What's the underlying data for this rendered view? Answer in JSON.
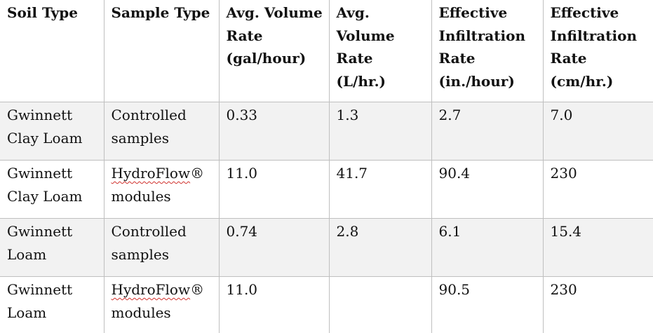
{
  "table": {
    "headers": [
      "Soil Type",
      "Sample Type",
      "Avg. Volume Rate (gal/hour)",
      "Avg. Volume Rate (L/hr.)",
      "Effective Infiltration Rate (in./hour)",
      "Effective Infiltration Rate (cm/hr.)"
    ],
    "rows": [
      {
        "soil_type": "Gwinnett Clay Loam",
        "sample_type_brand": "",
        "sample_type": "Controlled samples",
        "avg_gal_hour": "0.33",
        "avg_l_hr": "1.3",
        "inf_in_hour": "2.7",
        "inf_cm_hr": "7.0"
      },
      {
        "soil_type": "Gwinnett Clay Loam",
        "sample_type_brand": "HydroFlow",
        "sample_type": "® modules",
        "avg_gal_hour": "11.0",
        "avg_l_hr": "41.7",
        "inf_in_hour": "90.4",
        "inf_cm_hr": "230"
      },
      {
        "soil_type": "Gwinnett Loam",
        "sample_type_brand": "",
        "sample_type": "Controlled samples",
        "avg_gal_hour": "0.74",
        "avg_l_hr": "2.8",
        "inf_in_hour": "6.1",
        "inf_cm_hr": "15.4"
      },
      {
        "soil_type": "Gwinnett Loam",
        "sample_type_brand": "HydroFlow",
        "sample_type": "® modules",
        "avg_gal_hour": "11.0",
        "avg_l_hr": "",
        "inf_in_hour": "90.5",
        "inf_cm_hr": "230"
      }
    ]
  }
}
